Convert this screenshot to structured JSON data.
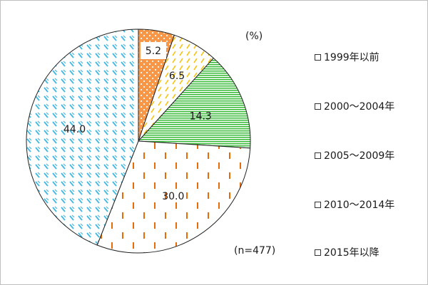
{
  "chart_data": {
    "type": "pie",
    "unit_label": "(%)",
    "sample_note": "(n=477)",
    "categories": [
      "1999年以前",
      "2000～2004年",
      "2005～2009年",
      "2010～2014年",
      "2015年以降"
    ],
    "values": [
      5.2,
      6.5,
      14.3,
      30.0,
      44.0
    ],
    "value_labels": [
      "5.2",
      "6.5",
      "14.3",
      "30.0",
      "44.0"
    ],
    "colors": [
      "#f79646",
      "#f5c518",
      "#35b935",
      "#e46c0a",
      "#41b8e0"
    ],
    "pattern_names": [
      "dots-on-orange",
      "dashes-yellow",
      "horizontal-lines-green",
      "dashes-orange",
      "diagonal-marks-blue"
    ],
    "legend_placement": "right"
  }
}
